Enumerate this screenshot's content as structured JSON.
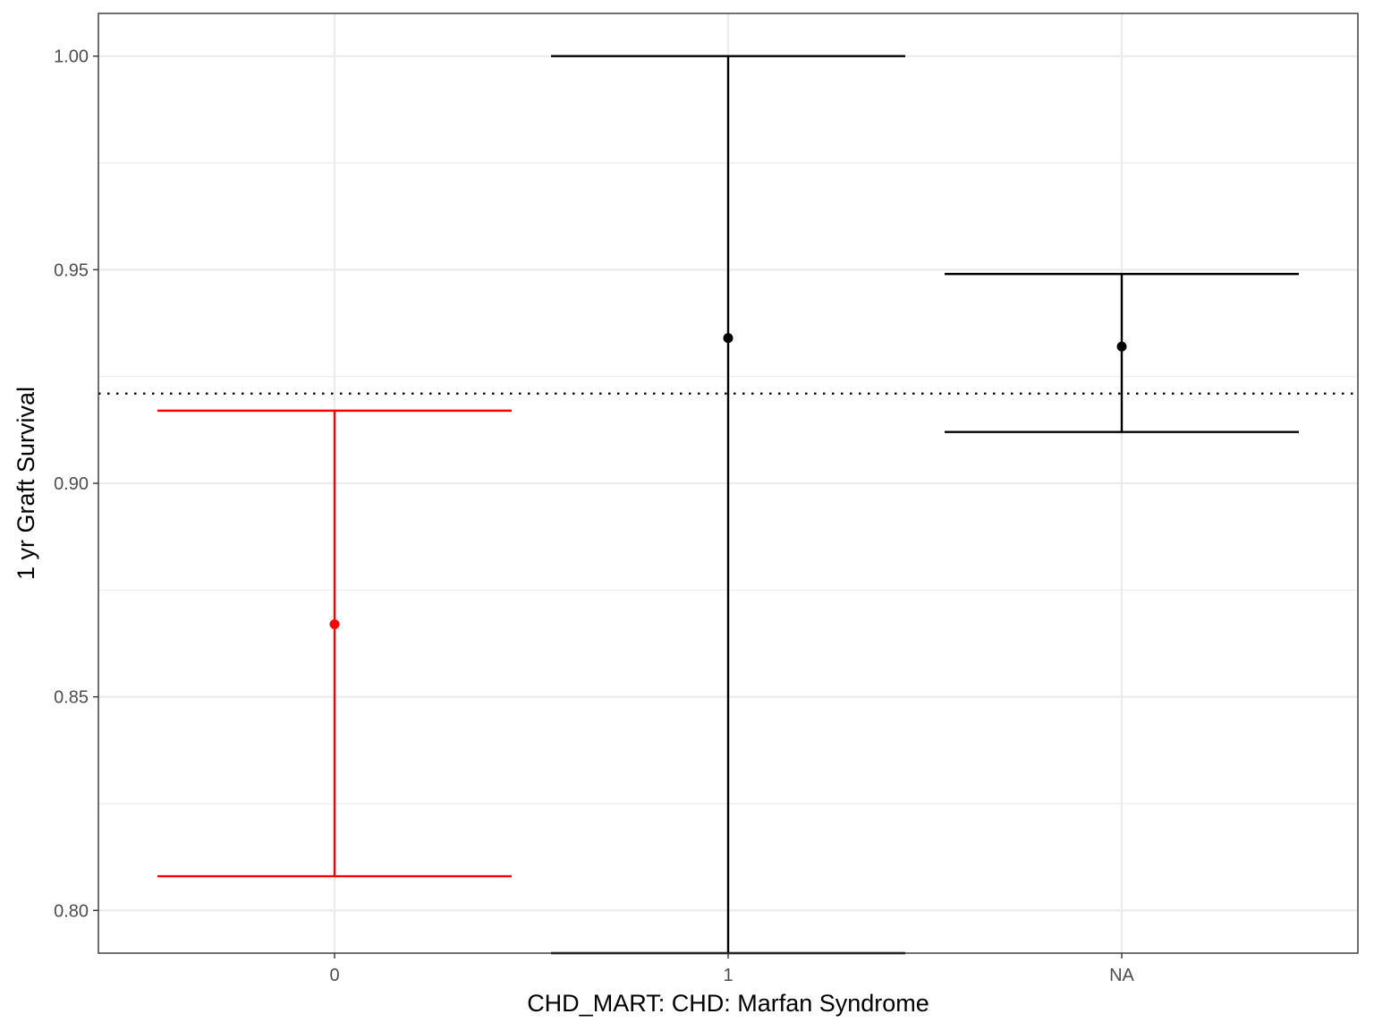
{
  "chart_data": {
    "type": "errorbar",
    "xlabel": "CHD_MART: CHD: Marfan Syndrome",
    "ylabel": "1 yr Graft Survival",
    "categories": [
      "0",
      "1",
      "NA"
    ],
    "ylim": [
      0.79,
      1.01
    ],
    "yticks": [
      0.8,
      0.85,
      0.9,
      0.95,
      1.0
    ],
    "ytick_labels": [
      "0.80",
      "0.85",
      "0.90",
      "0.95",
      "1.00"
    ],
    "y_minor_gridlines": [
      0.825,
      0.875,
      0.925,
      0.975
    ],
    "reference_line": {
      "y": 0.921,
      "style": "dotted",
      "color": "#000000"
    },
    "grid": true,
    "points": [
      {
        "category": "0",
        "y": 0.867,
        "lower": 0.808,
        "upper": 0.917,
        "color": "#ff0000"
      },
      {
        "category": "1",
        "y": 0.934,
        "lower": 0.79,
        "upper": 1.0,
        "color": "#000000"
      },
      {
        "category": "NA",
        "y": 0.932,
        "lower": 0.912,
        "upper": 0.949,
        "color": "#000000"
      }
    ]
  },
  "colors": {
    "highlight": "#ff0000",
    "default": "#000000",
    "grid": "#ebebeb",
    "panel_border": "#333333"
  }
}
